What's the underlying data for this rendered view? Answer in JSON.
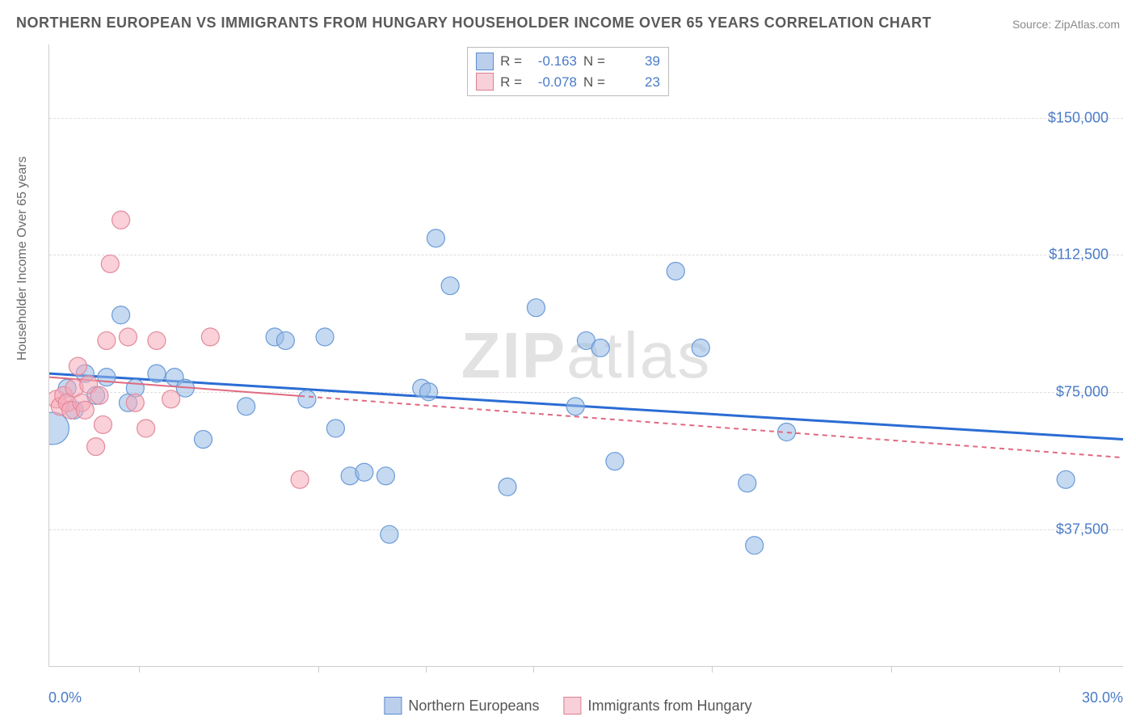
{
  "title": "NORTHERN EUROPEAN VS IMMIGRANTS FROM HUNGARY HOUSEHOLDER INCOME OVER 65 YEARS CORRELATION CHART",
  "source": "Source: ZipAtlas.com",
  "ylabel": "Householder Income Over 65 years",
  "watermark_left": "ZIP",
  "watermark_right": "atlas",
  "chart": {
    "type": "scatter",
    "xlim": [
      0,
      30
    ],
    "ylim": [
      0,
      170000
    ],
    "x_start_label": "0.0%",
    "x_end_label": "30.0%",
    "xticks": [
      2.5,
      7.5,
      10.5,
      13.5,
      18.5,
      23.5,
      28.2
    ],
    "yticks": [
      {
        "v": 37500,
        "label": "$37,500"
      },
      {
        "v": 75000,
        "label": "$75,000"
      },
      {
        "v": 112500,
        "label": "$112,500"
      },
      {
        "v": 150000,
        "label": "$150,000"
      }
    ],
    "grid_color": "#dddddd",
    "background_color": "#ffffff",
    "series": [
      {
        "name": "Northern Europeans",
        "fill": "rgba(150,185,230,0.55)",
        "stroke": "#6a9bd8",
        "marker_r": 11,
        "trend": {
          "y_at_xmin": 80000,
          "y_at_xmax": 62000,
          "stroke": "#2b6cd4",
          "width": 3,
          "dash": null
        },
        "R": "-0.163",
        "N": "39",
        "points": [
          {
            "x": 0.1,
            "y": 65000,
            "r": 20
          },
          {
            "x": 0.5,
            "y": 76000
          },
          {
            "x": 0.7,
            "y": 70000
          },
          {
            "x": 1.0,
            "y": 80000
          },
          {
            "x": 1.3,
            "y": 74000
          },
          {
            "x": 1.6,
            "y": 79000
          },
          {
            "x": 2.0,
            "y": 96000
          },
          {
            "x": 2.2,
            "y": 72000
          },
          {
            "x": 2.4,
            "y": 76000
          },
          {
            "x": 3.0,
            "y": 80000
          },
          {
            "x": 3.5,
            "y": 79000
          },
          {
            "x": 3.8,
            "y": 76000
          },
          {
            "x": 4.3,
            "y": 62000
          },
          {
            "x": 5.5,
            "y": 71000
          },
          {
            "x": 6.3,
            "y": 90000
          },
          {
            "x": 6.6,
            "y": 89000
          },
          {
            "x": 7.2,
            "y": 73000
          },
          {
            "x": 7.7,
            "y": 90000
          },
          {
            "x": 8.0,
            "y": 65000
          },
          {
            "x": 8.4,
            "y": 52000
          },
          {
            "x": 8.8,
            "y": 53000
          },
          {
            "x": 9.4,
            "y": 52000
          },
          {
            "x": 9.5,
            "y": 36000
          },
          {
            "x": 10.4,
            "y": 76000
          },
          {
            "x": 10.6,
            "y": 75000
          },
          {
            "x": 10.8,
            "y": 117000
          },
          {
            "x": 11.2,
            "y": 104000
          },
          {
            "x": 12.8,
            "y": 49000
          },
          {
            "x": 13.6,
            "y": 98000
          },
          {
            "x": 14.7,
            "y": 71000
          },
          {
            "x": 15.0,
            "y": 89000
          },
          {
            "x": 15.4,
            "y": 87000
          },
          {
            "x": 15.8,
            "y": 56000
          },
          {
            "x": 17.5,
            "y": 108000
          },
          {
            "x": 18.2,
            "y": 87000
          },
          {
            "x": 19.5,
            "y": 50000
          },
          {
            "x": 19.7,
            "y": 33000
          },
          {
            "x": 20.6,
            "y": 64000
          },
          {
            "x": 28.4,
            "y": 51000
          }
        ]
      },
      {
        "name": "Immigrants from Hungary",
        "fill": "rgba(245,170,185,0.55)",
        "stroke": "#e28a9a",
        "marker_r": 11,
        "trend": {
          "y_at_xmin": 79000,
          "y_at_xmax": 57000,
          "solid_until_x": 7.0,
          "stroke": "#e06a80",
          "width": 2,
          "dash": "6,5"
        },
        "R": "-0.078",
        "N": "23",
        "points": [
          {
            "x": 0.2,
            "y": 73000
          },
          {
            "x": 0.3,
            "y": 71000
          },
          {
            "x": 0.4,
            "y": 74000
          },
          {
            "x": 0.5,
            "y": 72000
          },
          {
            "x": 0.6,
            "y": 70000
          },
          {
            "x": 0.7,
            "y": 76000
          },
          {
            "x": 0.8,
            "y": 82000
          },
          {
            "x": 0.9,
            "y": 72000
          },
          {
            "x": 1.0,
            "y": 70000
          },
          {
            "x": 1.1,
            "y": 77000
          },
          {
            "x": 1.3,
            "y": 60000
          },
          {
            "x": 1.4,
            "y": 74000
          },
          {
            "x": 1.5,
            "y": 66000
          },
          {
            "x": 1.6,
            "y": 89000
          },
          {
            "x": 1.7,
            "y": 110000
          },
          {
            "x": 2.0,
            "y": 122000
          },
          {
            "x": 2.2,
            "y": 90000
          },
          {
            "x": 2.4,
            "y": 72000
          },
          {
            "x": 2.7,
            "y": 65000
          },
          {
            "x": 3.0,
            "y": 89000
          },
          {
            "x": 3.4,
            "y": 73000
          },
          {
            "x": 4.5,
            "y": 90000
          },
          {
            "x": 7.0,
            "y": 51000
          }
        ]
      }
    ]
  },
  "legend_bottom": [
    {
      "swatch": "blue",
      "label": "Northern Europeans"
    },
    {
      "swatch": "pink",
      "label": "Immigrants from Hungary"
    }
  ],
  "stats_box_labels": {
    "R": "R =",
    "N": "N ="
  }
}
